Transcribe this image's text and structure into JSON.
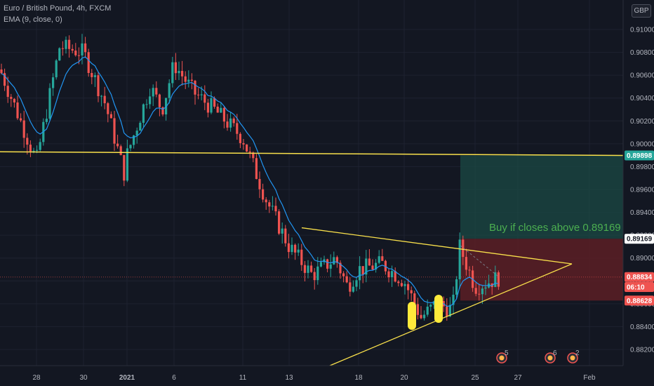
{
  "legend": {
    "symbol": "Euro / British Pound, 4h, FXCM",
    "indicator": "EMA (9, close, 0)"
  },
  "currency_label": "GBP",
  "colors": {
    "background": "#131722",
    "bull": "#26a69a",
    "bear": "#ef5350",
    "ema": "#2196f3",
    "trendline": "#f9e04b",
    "profit_zone": "#1b4a44",
    "loss_zone": "#5c1f24",
    "annotation": "#4caf50"
  },
  "annotation": {
    "text": "Buy if closes above 0.89169"
  },
  "price_tags": [
    {
      "label": "0.89898",
      "value": 0.89898,
      "bg": "#26a69a",
      "fg": "#ffffff"
    },
    {
      "label": "0.89169",
      "value": 0.89169,
      "bg": "#ffffff",
      "fg": "#131722"
    },
    {
      "label": "0.88834",
      "value": 0.88834,
      "bg": "#ef5350",
      "fg": "#ffffff"
    },
    {
      "label": "06:10",
      "value": 0.8867,
      "bg": "#ef5350",
      "fg": "#ffffff"
    },
    {
      "label": "0.88628",
      "value": 0.88628,
      "bg": "#ef5350",
      "fg": "#ffffff"
    }
  ],
  "event_markers": [
    {
      "label": "5",
      "x_tick": "25"
    },
    {
      "label": "6",
      "x_tick": "27"
    },
    {
      "label": "2",
      "x_tick": "Feb"
    }
  ],
  "chart_data": {
    "type": "candlestick",
    "title": "Euro / British Pound, 4h, FXCM",
    "y_ticks": [
      "0.91000",
      "0.90800",
      "0.90600",
      "0.90400",
      "0.90200",
      "0.90000",
      "0.89800",
      "0.89600",
      "0.89400",
      "0.89200",
      "0.89000",
      "0.88800",
      "0.88600",
      "0.88400",
      "0.88200"
    ],
    "ylim": [
      0.8806,
      0.913
    ],
    "x_ticks": [
      "28",
      "30",
      "2021",
      "6",
      "11",
      "13",
      "18",
      "20",
      "25",
      "27",
      "Feb"
    ],
    "grid": true,
    "price_points": [
      [
        "start",
        0.9065
      ],
      [
        "28",
        0.8985
      ],
      [
        "29",
        0.9085
      ],
      [
        "30",
        0.908
      ],
      [
        "31",
        0.9035
      ],
      [
        "2021",
        0.8965
      ],
      [
        "1",
        0.899
      ],
      [
        "4",
        0.905
      ],
      [
        "5",
        0.903
      ],
      [
        "6",
        0.907
      ],
      [
        "7",
        0.9045
      ],
      [
        "8",
        0.903
      ],
      [
        "11",
        0.9005
      ],
      [
        "12",
        0.895
      ],
      [
        "13",
        0.891
      ],
      [
        "14",
        0.8885
      ],
      [
        "15",
        0.89
      ],
      [
        "17",
        0.8875
      ],
      [
        "18",
        0.889
      ],
      [
        "19",
        0.8895
      ],
      [
        "20",
        0.888
      ],
      [
        "21",
        0.8848
      ],
      [
        "22",
        0.886
      ],
      [
        "23",
        0.8855
      ],
      [
        "24",
        0.891
      ],
      [
        "25",
        0.8875
      ],
      [
        "26",
        0.8883
      ]
    ],
    "ema_line": "EMA (9, close, 0)",
    "horizontal_line": {
      "value": 0.89898
    },
    "triangle_upper": {
      "from": [
        "13",
        0.89265
      ],
      "to": [
        "26",
        0.89065
      ]
    },
    "triangle_lower": {
      "from": [
        "13",
        0.8808
      ],
      "to": [
        "26",
        0.88945
      ]
    },
    "position": {
      "entry": 0.89169,
      "target": 0.89898,
      "stop": 0.88628
    },
    "highlight_lows": [
      0.8848,
      0.8853
    ]
  }
}
